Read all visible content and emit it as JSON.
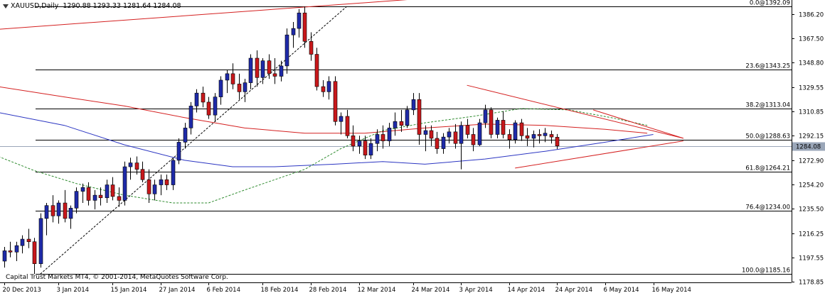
{
  "header": {
    "symbol": "XAUUSD,Daily",
    "ohlc": "1290.88 1293.33 1281.64 1284.08"
  },
  "copyright": "Capital Trust Markets MT4, © 2001-2014, MetaQuotes Software Corp.",
  "current_price_label": "1284.08",
  "colors": {
    "bull": "#1e2aa8",
    "bear": "#c8181b",
    "ma_red": "#d42020",
    "ma_blue": "#2b35c2",
    "ma_green": "#2e8b2e",
    "trendline": "#d42020",
    "fib": "#000000",
    "grid_bg": "#ffffff"
  },
  "chart_data": {
    "type": "candlestick",
    "ylim": [
      1178.55,
      1397
    ],
    "y_ticks": [
      1386.2,
      1367.5,
      1348.8,
      1329.55,
      1310.85,
      1292.15,
      1272.9,
      1254.2,
      1235.5,
      1216.25,
      1197.55,
      1178.85
    ],
    "y_tick_labels": [
      "1386.20",
      "1367.50",
      "1348.80",
      "1329.55",
      "1310.85",
      "1292.15",
      "1272.90",
      "1254.20",
      "1235.50",
      "1216.25",
      "1197.55",
      "1178.85"
    ],
    "x_labels": [
      {
        "label": "20 Dec 2013",
        "index": 0
      },
      {
        "label": "3 Jan 2014",
        "index": 9
      },
      {
        "label": "15 Jan 2014",
        "index": 18
      },
      {
        "label": "27 Jan 2014",
        "index": 26
      },
      {
        "label": "6 Feb 2014",
        "index": 34
      },
      {
        "label": "18 Feb 2014",
        "index": 43
      },
      {
        "label": "28 Feb 2014",
        "index": 51
      },
      {
        "label": "12 Mar 2014",
        "index": 59
      },
      {
        "label": "24 Mar 2014",
        "index": 68
      },
      {
        "label": "3 Apr 2014",
        "index": 76
      },
      {
        "label": "14 Apr 2014",
        "index": 84
      },
      {
        "label": "24 Apr 2014",
        "index": 92
      },
      {
        "label": "6 May 2014",
        "index": 100
      },
      {
        "label": "16 May 2014",
        "index": 108
      }
    ],
    "candles": [
      [
        1195,
        1206,
        1190,
        1203
      ],
      [
        1203,
        1210,
        1198,
        1202
      ],
      [
        1202,
        1210,
        1195,
        1207
      ],
      [
        1207,
        1215,
        1201,
        1212
      ],
      [
        1212,
        1220,
        1205,
        1210
      ],
      [
        1210,
        1213,
        1185,
        1193
      ],
      [
        1193,
        1232,
        1190,
        1228
      ],
      [
        1228,
        1240,
        1215,
        1238
      ],
      [
        1238,
        1246,
        1225,
        1230
      ],
      [
        1230,
        1242,
        1224,
        1240
      ],
      [
        1240,
        1250,
        1225,
        1228
      ],
      [
        1228,
        1238,
        1220,
        1236
      ],
      [
        1236,
        1252,
        1232,
        1249
      ],
      [
        1249,
        1255,
        1240,
        1252
      ],
      [
        1252,
        1256,
        1238,
        1242
      ],
      [
        1242,
        1250,
        1235,
        1246
      ],
      [
        1246,
        1252,
        1238,
        1244
      ],
      [
        1244,
        1258,
        1240,
        1254
      ],
      [
        1254,
        1260,
        1242,
        1245
      ],
      [
        1245,
        1252,
        1237,
        1242
      ],
      [
        1242,
        1272,
        1238,
        1268
      ],
      [
        1268,
        1275,
        1258,
        1271
      ],
      [
        1271,
        1276,
        1262,
        1266
      ],
      [
        1266,
        1272,
        1256,
        1258
      ],
      [
        1258,
        1266,
        1240,
        1247
      ],
      [
        1247,
        1258,
        1242,
        1254
      ],
      [
        1254,
        1262,
        1246,
        1258
      ],
      [
        1258,
        1262,
        1250,
        1254
      ],
      [
        1254,
        1275,
        1250,
        1273
      ],
      [
        1273,
        1290,
        1270,
        1287
      ],
      [
        1287,
        1302,
        1282,
        1298
      ],
      [
        1298,
        1318,
        1293,
        1315
      ],
      [
        1315,
        1328,
        1310,
        1325
      ],
      [
        1325,
        1330,
        1314,
        1318
      ],
      [
        1318,
        1322,
        1305,
        1308
      ],
      [
        1308,
        1325,
        1303,
        1322
      ],
      [
        1322,
        1338,
        1316,
        1335
      ],
      [
        1335,
        1343,
        1325,
        1340
      ],
      [
        1340,
        1348,
        1328,
        1332
      ],
      [
        1332,
        1340,
        1320,
        1326
      ],
      [
        1326,
        1336,
        1318,
        1333
      ],
      [
        1333,
        1355,
        1328,
        1352
      ],
      [
        1352,
        1358,
        1330,
        1337
      ],
      [
        1337,
        1352,
        1332,
        1350
      ],
      [
        1350,
        1355,
        1336,
        1340
      ],
      [
        1340,
        1352,
        1332,
        1338
      ],
      [
        1338,
        1350,
        1334,
        1346
      ],
      [
        1346,
        1375,
        1340,
        1370
      ],
      [
        1370,
        1380,
        1360,
        1375
      ],
      [
        1375,
        1390,
        1368,
        1387
      ],
      [
        1387,
        1392,
        1360,
        1365
      ],
      [
        1365,
        1372,
        1350,
        1355
      ],
      [
        1355,
        1360,
        1327,
        1330
      ],
      [
        1330,
        1335,
        1322,
        1326
      ],
      [
        1326,
        1338,
        1320,
        1334
      ],
      [
        1334,
        1338,
        1300,
        1303
      ],
      [
        1303,
        1310,
        1293,
        1307
      ],
      [
        1307,
        1312,
        1290,
        1292
      ],
      [
        1292,
        1300,
        1280,
        1284
      ],
      [
        1284,
        1292,
        1278,
        1288
      ],
      [
        1288,
        1292,
        1274,
        1277
      ],
      [
        1277,
        1290,
        1274,
        1286
      ],
      [
        1286,
        1297,
        1280,
        1293
      ],
      [
        1293,
        1300,
        1282,
        1288
      ],
      [
        1288,
        1302,
        1284,
        1298
      ],
      [
        1298,
        1310,
        1292,
        1303
      ],
      [
        1303,
        1312,
        1295,
        1300
      ],
      [
        1300,
        1315,
        1298,
        1312
      ],
      [
        1312,
        1325,
        1308,
        1320
      ],
      [
        1320,
        1325,
        1285,
        1293
      ],
      [
        1293,
        1300,
        1280,
        1296
      ],
      [
        1296,
        1300,
        1284,
        1290
      ],
      [
        1290,
        1295,
        1278,
        1282
      ],
      [
        1282,
        1294,
        1278,
        1291
      ],
      [
        1291,
        1298,
        1286,
        1295
      ],
      [
        1295,
        1301,
        1282,
        1286
      ],
      [
        1286,
        1303,
        1266,
        1300
      ],
      [
        1300,
        1305,
        1290,
        1293
      ],
      [
        1293,
        1298,
        1280,
        1285
      ],
      [
        1285,
        1305,
        1284,
        1302
      ],
      [
        1302,
        1316,
        1298,
        1312
      ],
      [
        1312,
        1314,
        1290,
        1293
      ],
      [
        1293,
        1306,
        1290,
        1304
      ],
      [
        1304,
        1311,
        1290,
        1293
      ],
      [
        1293,
        1297,
        1282,
        1289
      ],
      [
        1289,
        1304,
        1286,
        1302
      ],
      [
        1302,
        1305,
        1288,
        1292
      ],
      [
        1292,
        1298,
        1284,
        1290
      ],
      [
        1290,
        1296,
        1283,
        1293
      ],
      [
        1293,
        1297,
        1286,
        1292
      ],
      [
        1292,
        1298,
        1287,
        1294
      ],
      [
        1293,
        1296,
        1286,
        1291
      ],
      [
        1290.88,
        1293.33,
        1281.64,
        1284.08
      ]
    ],
    "fibonacci_levels": [
      {
        "label": "0.0@1392.09",
        "price": 1392.09
      },
      {
        "label": "23.6@1343.25",
        "price": 1343.25
      },
      {
        "label": "38.2@1313.04",
        "price": 1313.04
      },
      {
        "label": "50.0@1288.63",
        "price": 1288.63
      },
      {
        "label": "61.8@1264.21",
        "price": 1264.21
      },
      {
        "label": "76.4@1234.00",
        "price": 1234.0
      },
      {
        "label": "100.0@1185.16",
        "price": 1185.16
      }
    ],
    "current_price": 1284.08,
    "moving_averages": [
      {
        "color": "ma_red",
        "style": "solid",
        "points": [
          [
            -1,
            1330
          ],
          [
            10,
            1322
          ],
          [
            20,
            1315
          ],
          [
            30,
            1306
          ],
          [
            40,
            1298
          ],
          [
            50,
            1294
          ],
          [
            60,
            1294
          ],
          [
            70,
            1298
          ],
          [
            80,
            1301
          ],
          [
            90,
            1300
          ],
          [
            100,
            1297
          ],
          [
            107,
            1294
          ]
        ]
      },
      {
        "color": "ma_blue",
        "style": "solid",
        "points": [
          [
            -1,
            1310
          ],
          [
            10,
            1300
          ],
          [
            20,
            1285
          ],
          [
            30,
            1273
          ],
          [
            38,
            1268
          ],
          [
            45,
            1268
          ],
          [
            55,
            1270
          ],
          [
            63,
            1272
          ],
          [
            70,
            1270
          ],
          [
            80,
            1274
          ],
          [
            90,
            1280
          ],
          [
            100,
            1287
          ],
          [
            108,
            1293
          ]
        ]
      },
      {
        "color": "ma_green",
        "style": "dashed",
        "points": [
          [
            -1,
            1276
          ],
          [
            5,
            1265
          ],
          [
            12,
            1255
          ],
          [
            20,
            1246
          ],
          [
            28,
            1240
          ],
          [
            34,
            1240
          ],
          [
            40,
            1250
          ],
          [
            50,
            1266
          ],
          [
            56,
            1282
          ],
          [
            63,
            1296
          ],
          [
            70,
            1302
          ],
          [
            78,
            1307
          ],
          [
            86,
            1313
          ],
          [
            94,
            1312
          ],
          [
            101,
            1306
          ],
          [
            107,
            1300
          ]
        ]
      }
    ],
    "trendlines": [
      {
        "color": "trendline",
        "style": "solid",
        "points": [
          [
            -2,
            1374
          ],
          [
            84,
            1403
          ]
        ]
      },
      {
        "color": "trendline",
        "style": "solid",
        "points": [
          [
            77,
            1331
          ],
          [
            113,
            1290
          ]
        ]
      },
      {
        "color": "trendline",
        "style": "solid",
        "points": [
          [
            85,
            1267
          ],
          [
            113,
            1288
          ]
        ]
      },
      {
        "color": "trendline",
        "style": "solid",
        "points": [
          [
            98,
            1312
          ],
          [
            113,
            1290
          ]
        ]
      },
      {
        "color": "fib",
        "style": "dashed",
        "points": [
          [
            6,
            1185
          ],
          [
            57,
            1392
          ]
        ]
      }
    ]
  }
}
